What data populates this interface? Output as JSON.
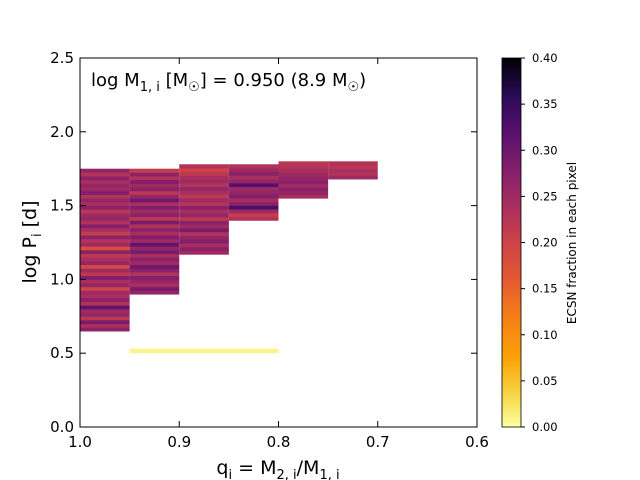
{
  "chart_data": {
    "type": "heatmap",
    "annotation": "log M",
    "annotation_sub": "1, i",
    "annotation_rest": " [M",
    "annotation_sun": "☉",
    "annotation_tail": "] = 0.950 (8.9 M",
    "annotation_end": ")",
    "xlabel": {
      "main": "q",
      "sub_i": "i",
      "eq": " = M",
      "sub2": "2, i",
      "slash": "/M",
      "sub1": "1, i"
    },
    "ylabel": {
      "main": "log P",
      "sub": "i",
      "unit": " [d]"
    },
    "x_axis": {
      "min": 1.0,
      "max": 0.6,
      "reversed": true,
      "ticks": [
        1.0,
        0.9,
        0.8,
        0.7,
        0.6
      ],
      "tick_labels": [
        "1.0",
        "0.9",
        "0.8",
        "0.7",
        "0.6"
      ]
    },
    "y_axis": {
      "min": 0.0,
      "max": 2.5,
      "ticks": [
        0.0,
        0.5,
        1.0,
        1.5,
        2.0,
        2.5
      ],
      "tick_labels": [
        "0.0",
        "0.5",
        "1.0",
        "1.5",
        "2.0",
        "2.5"
      ]
    },
    "colorbar": {
      "label": "ECSN fraction in each pixel",
      "min": 0.0,
      "max": 0.4,
      "ticks": [
        0.0,
        0.05,
        0.1,
        0.15,
        0.2,
        0.25,
        0.3,
        0.35,
        0.4
      ],
      "tick_labels": [
        "0.00",
        "0.05",
        "0.10",
        "0.15",
        "0.20",
        "0.25",
        "0.30",
        "0.35",
        "0.40"
      ],
      "colormap": "inferno_r"
    },
    "columns": [
      {
        "q_range": [
          1.0,
          0.95
        ],
        "logP_range": [
          0.65,
          1.75
        ],
        "values": [
          0.27,
          0.24,
          0.29,
          0.22,
          0.26,
          0.25,
          0.31,
          0.23,
          0.27,
          0.24,
          0.25,
          0.2,
          0.26,
          0.24,
          0.28,
          0.22,
          0.25,
          0.19,
          0.26,
          0.24,
          0.22,
          0.27,
          0.18,
          0.25,
          0.23,
          0.27,
          0.21,
          0.24,
          0.28,
          0.23,
          0.26,
          0.25,
          0.22,
          0.27,
          0.24,
          0.26,
          0.23,
          0.28,
          0.25,
          0.26,
          0.24,
          0.27,
          0.23,
          0.26
        ]
      },
      {
        "q_range": [
          0.95,
          0.9
        ],
        "logP_range": [
          0.9,
          1.75
        ],
        "values": [
          0.26,
          0.29,
          0.24,
          0.26,
          0.28,
          0.23,
          0.27,
          0.3,
          0.25,
          0.27,
          0.24,
          0.29,
          0.26,
          0.31,
          0.25,
          0.28,
          0.24,
          0.27,
          0.23,
          0.29,
          0.22,
          0.27,
          0.25,
          0.28,
          0.24,
          0.3,
          0.26,
          0.22,
          0.27,
          0.25,
          0.28,
          0.23,
          0.27,
          0.21
        ]
      },
      {
        "q_range": [
          0.9,
          0.85
        ],
        "logP_range": [
          1.17,
          1.78
        ],
        "values": [
          0.25,
          0.27,
          0.24,
          0.28,
          0.26,
          0.23,
          0.29,
          0.25,
          0.27,
          0.22,
          0.26,
          0.24,
          0.27,
          0.23,
          0.25,
          0.22,
          0.24,
          0.26,
          0.23,
          0.25,
          0.24,
          0.22,
          0.2,
          0.23
        ]
      },
      {
        "q_range": [
          0.85,
          0.8
        ],
        "logP_range": [
          1.4,
          1.78
        ],
        "values": [
          0.23,
          0.21,
          0.25,
          0.33,
          0.27,
          0.24,
          0.28,
          0.26,
          0.25,
          0.32,
          0.26,
          0.24,
          0.27,
          0.25,
          0.23
        ]
      },
      {
        "q_range": [
          0.8,
          0.75
        ],
        "logP_range": [
          1.55,
          1.8
        ],
        "values": [
          0.24,
          0.26,
          0.27,
          0.25,
          0.27,
          0.26,
          0.25,
          0.24,
          0.23,
          0.22
        ]
      },
      {
        "q_range": [
          0.75,
          0.7
        ],
        "logP_range": [
          1.68,
          1.8
        ],
        "values": [
          0.25,
          0.23,
          0.24,
          0.22,
          0.23
        ]
      }
    ],
    "low_band": {
      "q_range": [
        0.95,
        0.8
      ],
      "logP_range": [
        0.5,
        0.53
      ],
      "value": 0.01
    }
  }
}
